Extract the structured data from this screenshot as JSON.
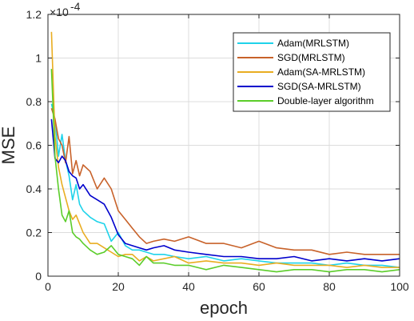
{
  "chart_data": {
    "type": "line",
    "title": "",
    "xlabel": "epoch",
    "ylabel": "MSE",
    "y_exponent_label": "×10",
    "y_exponent_power": "-4",
    "xlim": [
      0,
      100
    ],
    "ylim": [
      0,
      1.2
    ],
    "x_ticks": [
      "0",
      "20",
      "40",
      "60",
      "80",
      "100"
    ],
    "y_ticks": [
      "0",
      "0.2",
      "0.4",
      "0.6",
      "0.8",
      "1",
      "1.2"
    ],
    "grid": true,
    "legend_position": "top-right",
    "series": [
      {
        "name": "Adam(MRLSTM)",
        "color": "#1fd3ea",
        "x": [
          1,
          2,
          3,
          4,
          5,
          6,
          7,
          8,
          9,
          10,
          12,
          14,
          16,
          18,
          20,
          22,
          24,
          26,
          28,
          30,
          33,
          36,
          40,
          45,
          50,
          55,
          60,
          65,
          70,
          75,
          80,
          85,
          90,
          95,
          100
        ],
        "values": [
          0.79,
          0.72,
          0.55,
          0.65,
          0.53,
          0.46,
          0.35,
          0.42,
          0.33,
          0.3,
          0.27,
          0.25,
          0.24,
          0.16,
          0.2,
          0.14,
          0.12,
          0.12,
          0.11,
          0.1,
          0.1,
          0.09,
          0.08,
          0.09,
          0.07,
          0.08,
          0.07,
          0.06,
          0.06,
          0.06,
          0.05,
          0.06,
          0.05,
          0.05,
          0.04
        ]
      },
      {
        "name": "SGD(MRLSTM)",
        "color": "#c8622a",
        "x": [
          1,
          2,
          3,
          4,
          5,
          6,
          7,
          8,
          9,
          10,
          12,
          14,
          16,
          18,
          20,
          22,
          24,
          26,
          28,
          30,
          33,
          36,
          40,
          45,
          50,
          55,
          60,
          65,
          70,
          75,
          80,
          85,
          90,
          95,
          100
        ],
        "values": [
          0.77,
          0.72,
          0.63,
          0.6,
          0.52,
          0.64,
          0.47,
          0.53,
          0.46,
          0.51,
          0.48,
          0.4,
          0.45,
          0.4,
          0.3,
          0.26,
          0.22,
          0.18,
          0.15,
          0.16,
          0.17,
          0.16,
          0.18,
          0.15,
          0.15,
          0.13,
          0.16,
          0.13,
          0.12,
          0.12,
          0.1,
          0.11,
          0.1,
          0.1,
          0.1
        ]
      },
      {
        "name": "Adam(SA-MRLSTM)",
        "color": "#e9ad21",
        "x": [
          1,
          2,
          3,
          4,
          5,
          6,
          7,
          8,
          9,
          10,
          12,
          14,
          16,
          18,
          20,
          22,
          24,
          26,
          28,
          30,
          33,
          36,
          40,
          45,
          50,
          55,
          60,
          65,
          70,
          75,
          80,
          85,
          90,
          95,
          100
        ],
        "values": [
          1.12,
          0.64,
          0.5,
          0.42,
          0.36,
          0.3,
          0.26,
          0.28,
          0.24,
          0.2,
          0.15,
          0.15,
          0.13,
          0.11,
          0.09,
          0.1,
          0.1,
          0.07,
          0.09,
          0.07,
          0.08,
          0.09,
          0.06,
          0.07,
          0.06,
          0.06,
          0.05,
          0.06,
          0.05,
          0.05,
          0.05,
          0.04,
          0.05,
          0.04,
          0.04
        ]
      },
      {
        "name": "SGD(SA-MRLSTM)",
        "color": "#0000cc",
        "x": [
          1,
          2,
          3,
          4,
          5,
          6,
          7,
          8,
          9,
          10,
          12,
          14,
          16,
          18,
          20,
          22,
          24,
          26,
          28,
          30,
          33,
          36,
          40,
          45,
          50,
          55,
          60,
          65,
          70,
          75,
          80,
          85,
          90,
          95,
          100
        ],
        "values": [
          0.72,
          0.54,
          0.52,
          0.55,
          0.53,
          0.48,
          0.46,
          0.45,
          0.4,
          0.42,
          0.37,
          0.35,
          0.33,
          0.27,
          0.19,
          0.15,
          0.14,
          0.13,
          0.12,
          0.13,
          0.14,
          0.12,
          0.11,
          0.1,
          0.09,
          0.09,
          0.08,
          0.08,
          0.09,
          0.07,
          0.08,
          0.07,
          0.08,
          0.07,
          0.08
        ]
      },
      {
        "name": "Double-layer algorithm",
        "color": "#5bcd2a",
        "x": [
          1,
          2,
          3,
          4,
          5,
          6,
          7,
          8,
          9,
          10,
          12,
          14,
          16,
          18,
          20,
          22,
          24,
          26,
          28,
          30,
          33,
          36,
          40,
          45,
          50,
          55,
          60,
          65,
          70,
          75,
          80,
          85,
          90,
          95,
          100
        ],
        "values": [
          0.95,
          0.55,
          0.4,
          0.28,
          0.25,
          0.3,
          0.2,
          0.18,
          0.17,
          0.15,
          0.12,
          0.1,
          0.11,
          0.14,
          0.1,
          0.09,
          0.08,
          0.05,
          0.09,
          0.06,
          0.06,
          0.05,
          0.05,
          0.03,
          0.05,
          0.04,
          0.03,
          0.02,
          0.03,
          0.03,
          0.02,
          0.03,
          0.03,
          0.02,
          0.03
        ]
      }
    ]
  }
}
